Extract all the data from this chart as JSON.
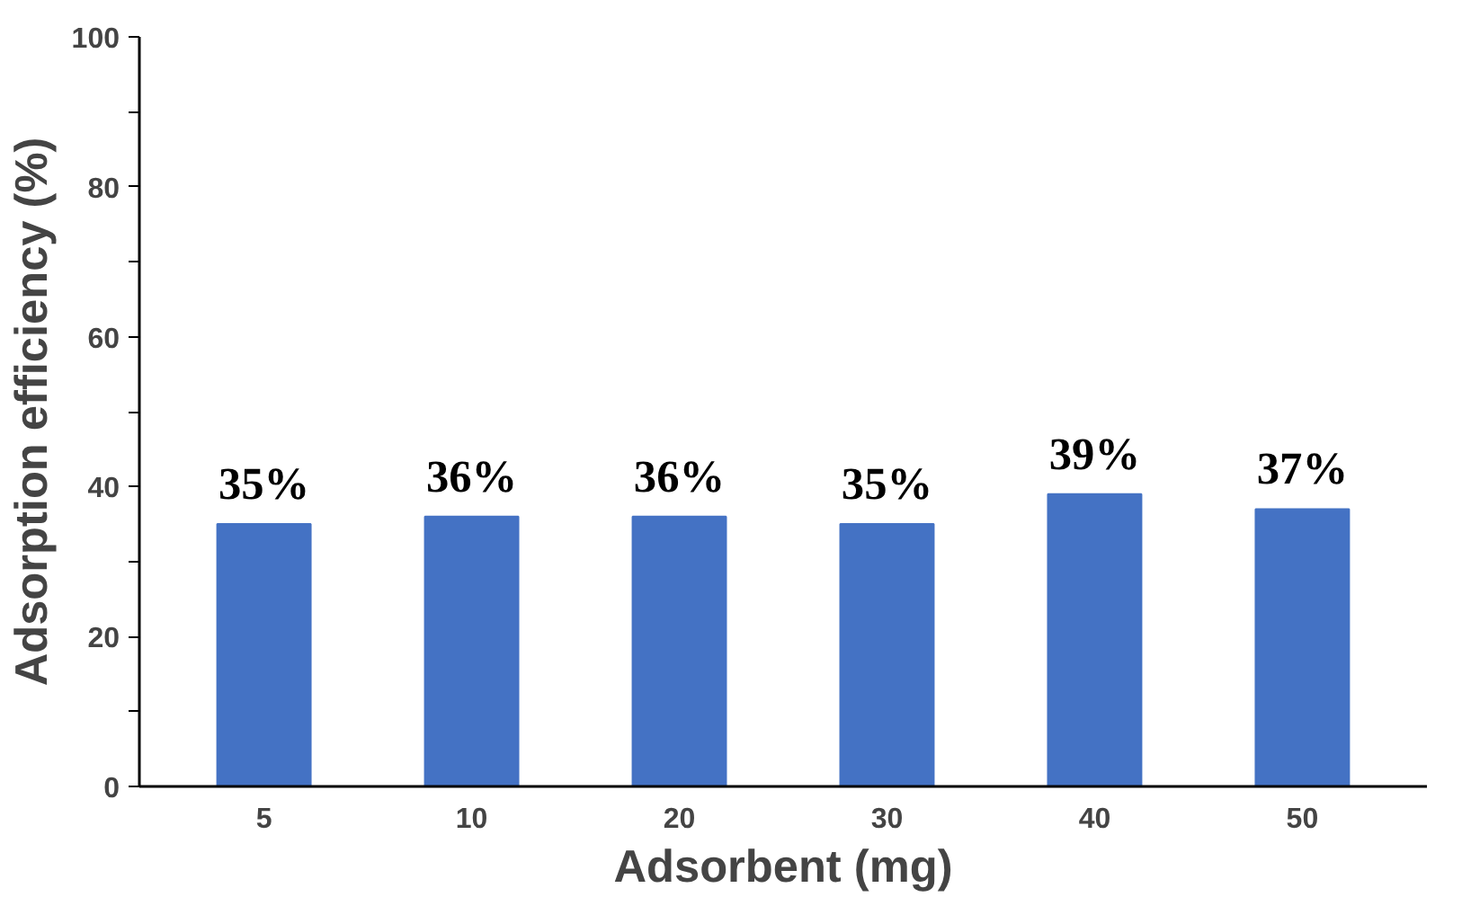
{
  "chart_data": {
    "type": "bar",
    "xlabel": "Adsorbent (mg)",
    "ylabel": "Adsorption efficiency (%)",
    "categories": [
      "5",
      "10",
      "20",
      "30",
      "40",
      "50"
    ],
    "values": [
      35,
      36,
      36,
      35,
      39,
      37
    ],
    "value_labels": [
      "35%",
      "36%",
      "36%",
      "35%",
      "39%",
      "37%"
    ],
    "color": "#4472c4",
    "ylim": [
      0,
      100
    ],
    "yticks": [
      0,
      {
        "value": 10,
        "label": null
      },
      20,
      {
        "value": 30,
        "label": null
      },
      40,
      {
        "value": 50,
        "label": null
      },
      60,
      {
        "value": 70,
        "label": null
      },
      80,
      {
        "value": 90,
        "label": null
      },
      100
    ],
    "grid": false
  }
}
